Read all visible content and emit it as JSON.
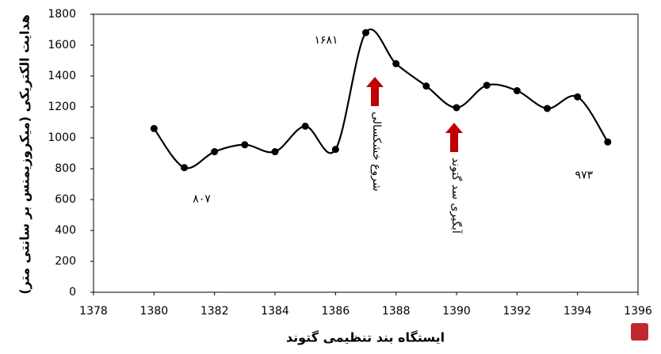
{
  "chart_data": {
    "type": "line",
    "x": [
      1380,
      1381,
      1382,
      1383,
      1384,
      1385,
      1386,
      1387,
      1388,
      1389,
      1390,
      1391,
      1392,
      1393,
      1394,
      1395
    ],
    "series": [
      {
        "color": "#000000",
        "values": [
          1060,
          807,
          910,
          955,
          910,
          1075,
          925,
          1681,
          1480,
          1335,
          1195,
          1340,
          1305,
          1190,
          1265,
          973
        ],
        "value_labels": [
          null,
          "۸۰۷",
          null,
          null,
          null,
          null,
          null,
          "۱۶۸۱",
          null,
          null,
          null,
          null,
          null,
          null,
          null,
          "۹۷۳"
        ]
      }
    ],
    "xlim": [
      1378,
      1396
    ],
    "xticks": [
      1378,
      1380,
      1382,
      1384,
      1386,
      1388,
      1390,
      1392,
      1394,
      1396
    ],
    "ylim": [
      0,
      1800
    ],
    "yticks": [
      0,
      200,
      400,
      600,
      800,
      1000,
      1200,
      1400,
      1600,
      1800
    ],
    "xlabel": "ایستگاه بند تنظیمی گتوند",
    "ylabel": "هدایت الکتریکی (میکروزیمنس بر سانتی متر)",
    "annotations": [
      "شروع خشکسالی",
      "آبگیری سد گتوند"
    ],
    "annotation_color": "#c00000"
  }
}
